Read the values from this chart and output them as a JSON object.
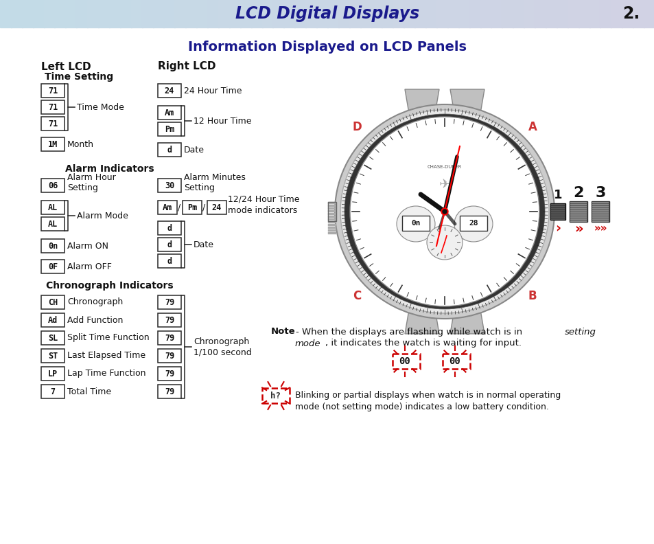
{
  "header_text": "LCD Digital Displays",
  "header_number": "2.",
  "header_text_color": "#1a1a8c",
  "title_text": "Information Displayed on LCD Panels",
  "title_color": "#1a1a8c",
  "left_lcd_label": "Left LCD",
  "right_lcd_label": "Right LCD",
  "time_setting_label": "Time Setting",
  "alarm_indicators_label": "Alarm Indicators",
  "chrono_indicators_label": "Chronograph Indicators",
  "lcd_items_left_time": [
    "71",
    "71",
    "71",
    "1M"
  ],
  "lcd_items_right_time": [
    "24",
    "Am",
    "Pm",
    "d"
  ],
  "lcd_items_left_alarm": [
    "06",
    "AL",
    "AL",
    "0n",
    "0F"
  ],
  "lcd_items_right_alarm_1": [
    "30"
  ],
  "lcd_items_right_alarm_2": [
    "Am",
    "Pm",
    "24"
  ],
  "lcd_items_right_alarm_date": [
    "d",
    "d",
    "d"
  ],
  "lcd_items_left_chrono": [
    "CH",
    "Ad",
    "SL",
    "ST",
    "LP",
    "7"
  ],
  "lcd_items_right_chrono": [
    "79",
    "79",
    "79",
    "79",
    "79",
    "79"
  ],
  "chrono_labels": [
    "Chronograph",
    "Add Function",
    "Split Time Function",
    "Last Elapsed Time",
    "Lap Time Function",
    "Total Time"
  ]
}
